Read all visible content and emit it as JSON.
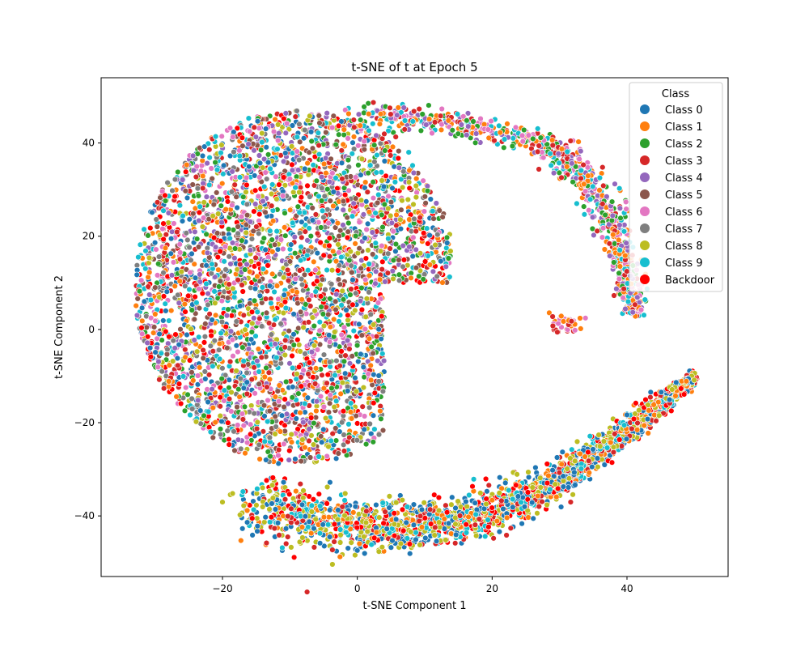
{
  "chart_data": {
    "type": "scatter",
    "title": "t-SNE of t at Epoch 5",
    "xlabel": "t-SNE Component 1",
    "ylabel": "t-SNE Component 2",
    "xlim": [
      -38,
      55
    ],
    "ylim": [
      -53,
      54
    ],
    "x_ticks": [
      -20,
      0,
      20,
      40
    ],
    "y_ticks": [
      -40,
      -20,
      0,
      20,
      40
    ],
    "grid": false,
    "legend": {
      "title": "Class",
      "placement": "top-right",
      "entries": [
        {
          "label": "Class 0",
          "color": "#1f77b4"
        },
        {
          "label": "Class 1",
          "color": "#ff7f0e"
        },
        {
          "label": "Class 2",
          "color": "#2ca02c"
        },
        {
          "label": "Class 3",
          "color": "#d62728"
        },
        {
          "label": "Class 4",
          "color": "#9467bd"
        },
        {
          "label": "Class 5",
          "color": "#8c564b"
        },
        {
          "label": "Class 6",
          "color": "#e377c2"
        },
        {
          "label": "Class 7",
          "color": "#7f7f7f"
        },
        {
          "label": "Class 8",
          "color": "#bcbd22"
        },
        {
          "label": "Class 9",
          "color": "#17becf"
        },
        {
          "label": "Backdoor",
          "color": "#ff0000"
        }
      ]
    },
    "regions": [
      {
        "name": "upper-left blob (mixed classes)",
        "center": [
          -8,
          10
        ],
        "x_range": [
          -34,
          12
        ],
        "y_range": [
          -30,
          48
        ],
        "classes": [
          "Class 0",
          "Class 1",
          "Class 2",
          "Class 3",
          "Class 4",
          "Class 5",
          "Class 6",
          "Class 7",
          "Class 8",
          "Class 9",
          "Backdoor"
        ]
      },
      {
        "name": "upper arc tail",
        "path": [
          [
            0,
            46
          ],
          [
            15,
            44
          ],
          [
            28,
            40
          ],
          [
            34,
            32
          ],
          [
            38,
            22
          ],
          [
            40,
            12
          ],
          [
            41,
            3
          ]
        ],
        "classes": [
          "Class 1",
          "Class 4",
          "Class 6",
          "Class 9",
          "Class 3"
        ]
      },
      {
        "name": "small isolated cluster",
        "center": [
          31,
          1
        ],
        "classes": [
          "Class 3",
          "Class 6",
          "Class 1"
        ]
      },
      {
        "name": "lower band",
        "path": [
          [
            -15,
            -38
          ],
          [
            0,
            -43
          ],
          [
            15,
            -41
          ],
          [
            28,
            -34
          ],
          [
            38,
            -24
          ],
          [
            45,
            -16
          ],
          [
            50,
            -10
          ]
        ],
        "classes": [
          "Class 0",
          "Class 1",
          "Class 8",
          "Class 9",
          "Class 3",
          "Backdoor"
        ]
      }
    ]
  }
}
